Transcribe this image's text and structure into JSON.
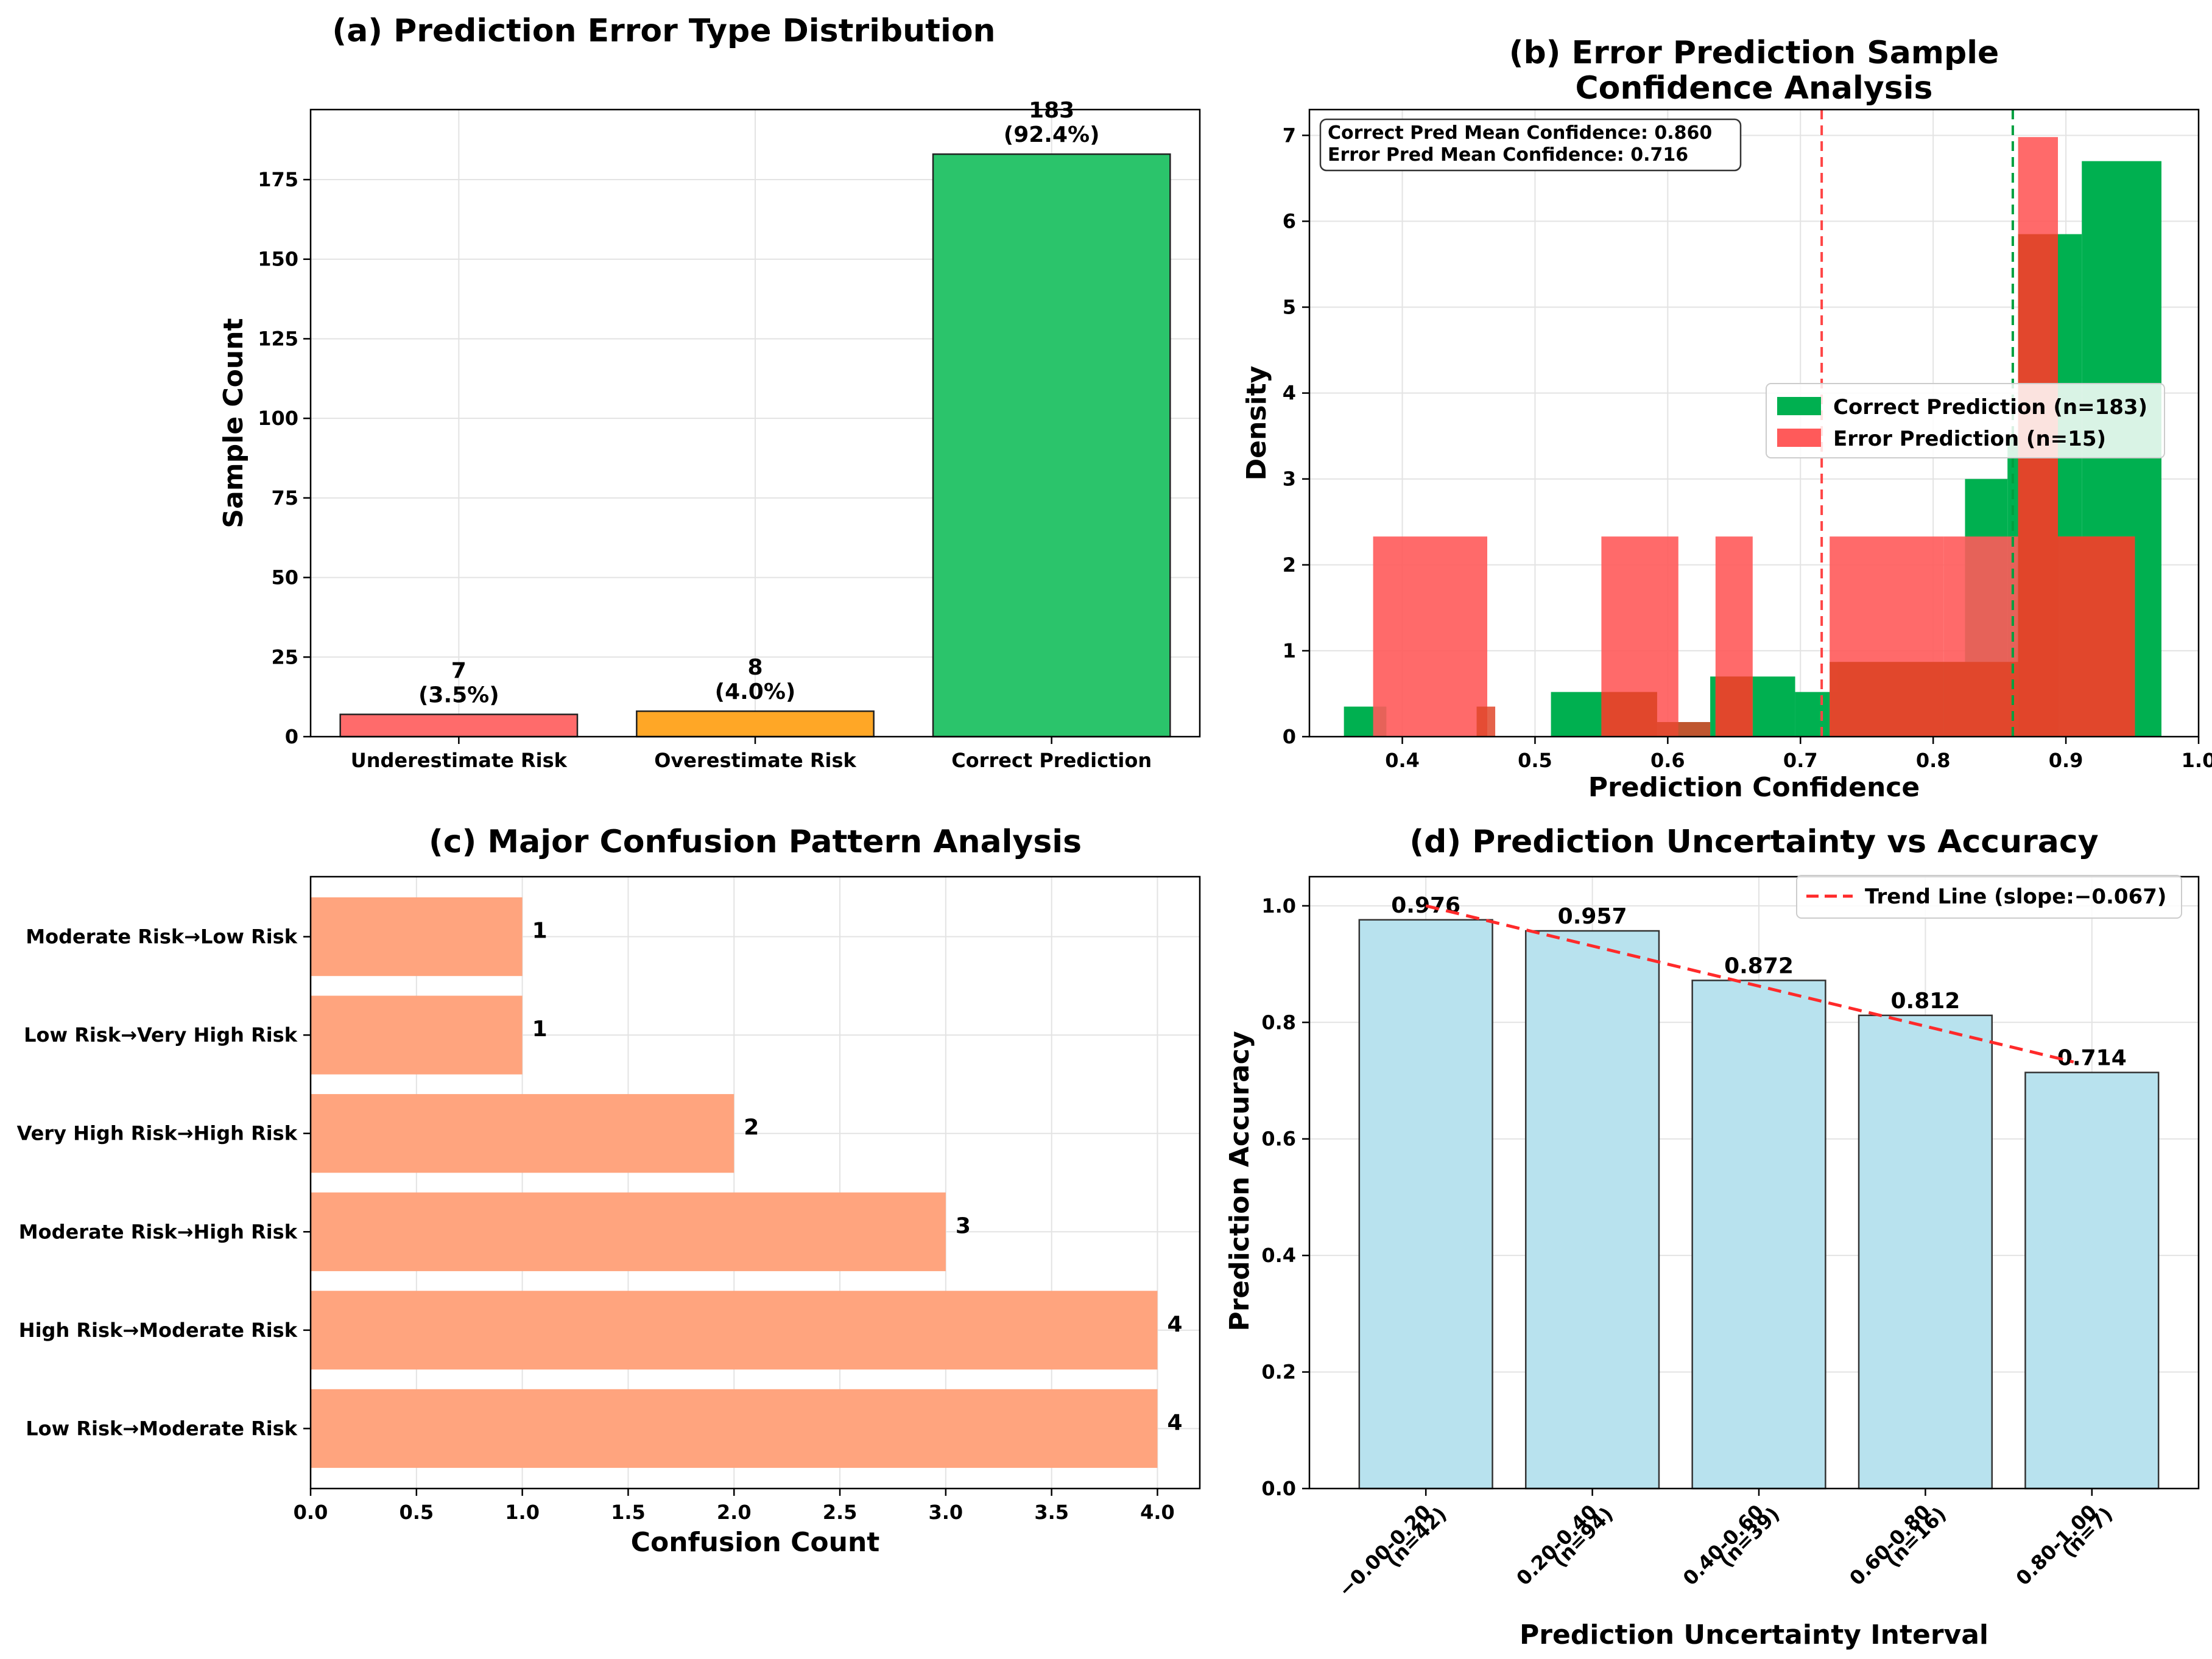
{
  "chart_data": [
    {
      "id": "a",
      "type": "bar",
      "title": "(a) Prediction Error Type Distribution",
      "xlabel": "",
      "ylabel": "Sample Count",
      "ylim": [
        0,
        197
      ],
      "yticks": [
        0,
        25,
        50,
        75,
        100,
        125,
        150,
        175
      ],
      "grid": true,
      "categories": [
        "Underestimate Risk",
        "Overestimate Risk",
        "Correct Prediction"
      ],
      "values": [
        7,
        8,
        183
      ],
      "value_labels": [
        "7",
        "8",
        "183"
      ],
      "percent_labels": [
        "(3.5%)",
        "(4.0%)",
        "(92.4%)"
      ],
      "colors": [
        "#ff6b6b",
        "#ffa726",
        "#2bc46b"
      ]
    },
    {
      "id": "b",
      "type": "histogram",
      "title_lines": [
        "(b) Error Prediction Sample",
        "Confidence Analysis"
      ],
      "xlabel": "Prediction Confidence",
      "ylabel": "Density",
      "xlim": [
        0.33,
        1.0
      ],
      "ylim": [
        0,
        7.3
      ],
      "xticks": [
        0.4,
        0.5,
        0.6,
        0.7,
        0.8,
        0.9,
        1.0
      ],
      "xtick_labels": [
        "0.4",
        "0.5",
        "0.6",
        "0.7",
        "0.8",
        "0.9",
        "1.0"
      ],
      "yticks": [
        0,
        1,
        2,
        3,
        4,
        5,
        6,
        7
      ],
      "grid": true,
      "series": [
        {
          "name": "Correct Prediction (n=183)",
          "color": "#00b050",
          "bins": [
            [
              0.356,
              0.388,
              0.35
            ],
            [
              0.388,
              0.432,
              0.0
            ],
            [
              0.432,
              0.475,
              0.0
            ],
            [
              0.475,
              0.512,
              0.0
            ],
            [
              0.512,
              0.556,
              0.52
            ],
            [
              0.556,
              0.592,
              0.52
            ],
            [
              0.592,
              0.632,
              0.17
            ],
            [
              0.632,
              0.664,
              0.7
            ],
            [
              0.664,
              0.696,
              0.7
            ],
            [
              0.696,
              0.728,
              0.52
            ],
            [
              0.728,
              0.76,
              0.87
            ],
            [
              0.76,
              0.792,
              0.87
            ],
            [
              0.792,
              0.824,
              0.87
            ],
            [
              0.824,
              0.856,
              3.0
            ],
            [
              0.856,
              0.888,
              3.5
            ],
            [
              0.888,
              0.912,
              5.85
            ],
            [
              0.912,
              0.972,
              6.7
            ]
          ]
        },
        {
          "name": "Error Prediction (n=15)",
          "color": "#ff5a5a",
          "bins": [
            [
              0.378,
              0.464,
              2.33
            ],
            [
              0.464,
              0.55,
              0.0
            ],
            [
              0.55,
              0.636,
              2.33
            ],
            [
              0.636,
              0.722,
              2.33
            ],
            [
              0.722,
              0.808,
              2.33
            ],
            [
              0.808,
              0.894,
              2.33
            ],
            [
              0.894,
              0.952,
              2.33
            ]
          ],
          "peaks": [
            [
              0.864,
              0.894,
              6.98
            ]
          ],
          "overrides": [
            [
              0.464,
              0.55,
              0.0
            ],
            [
              0.664,
              0.722,
              0.0
            ]
          ]
        }
      ],
      "vlines": [
        {
          "x": 0.716,
          "color": "#ff4444",
          "label": "Error Pred Mean"
        },
        {
          "x": 0.86,
          "color": "#00a040",
          "label": "Correct Pred Mean"
        }
      ],
      "annotation_lines": [
        "Correct Pred Mean Confidence: 0.860",
        "Error Pred Mean Confidence: 0.716"
      ],
      "legend": [
        "Correct Prediction (n=183)",
        "Error Prediction (n=15)"
      ]
    },
    {
      "id": "c",
      "type": "hbar",
      "title": "(c) Major Confusion Pattern Analysis",
      "xlabel": "Confusion Count",
      "ylabel": "",
      "xlim": [
        0,
        4.2
      ],
      "xticks": [
        0.0,
        0.5,
        1.0,
        1.5,
        2.0,
        2.5,
        3.0,
        3.5,
        4.0
      ],
      "xtick_labels": [
        "0.0",
        "0.5",
        "1.0",
        "1.5",
        "2.0",
        "2.5",
        "3.0",
        "3.5",
        "4.0"
      ],
      "grid": true,
      "categories": [
        "Moderate Risk→Low Risk",
        "Low Risk→Very High Risk",
        "Very High Risk→High Risk",
        "Moderate Risk→High Risk",
        "High Risk→Moderate Risk",
        "Low Risk→Moderate Risk"
      ],
      "values": [
        1,
        1,
        2,
        3,
        4,
        4
      ],
      "value_labels": [
        "1",
        "1",
        "2",
        "3",
        "4",
        "4"
      ],
      "color": "#ffa47e"
    },
    {
      "id": "d",
      "type": "bar",
      "title": "(d) Prediction Uncertainty vs Accuracy",
      "xlabel": "Prediction Uncertainty Interval",
      "ylabel": "Prediction Accuracy",
      "ylim": [
        0,
        1.05
      ],
      "yticks": [
        0.0,
        0.2,
        0.4,
        0.6,
        0.8,
        1.0
      ],
      "ytick_labels": [
        "0.0",
        "0.2",
        "0.4",
        "0.6",
        "0.8",
        "1.0"
      ],
      "grid": true,
      "categories": [
        "−0.00-0.20",
        "0.20-0.40",
        "0.40-0.60",
        "0.60-0.80",
        "0.80-1.00"
      ],
      "category_counts": [
        "(n=42)",
        "(n=94)",
        "(n=39)",
        "(n=16)",
        "(n=7)"
      ],
      "values": [
        0.976,
        0.957,
        0.872,
        0.812,
        0.714
      ],
      "value_labels": [
        "0.976",
        "0.957",
        "0.872",
        "0.812",
        "0.714"
      ],
      "color": "#b8e2ee",
      "trend": {
        "label": "Trend Line (slope:−0.067)",
        "start": 1.0,
        "end": 0.732,
        "color": "#ff2a2a"
      }
    }
  ]
}
